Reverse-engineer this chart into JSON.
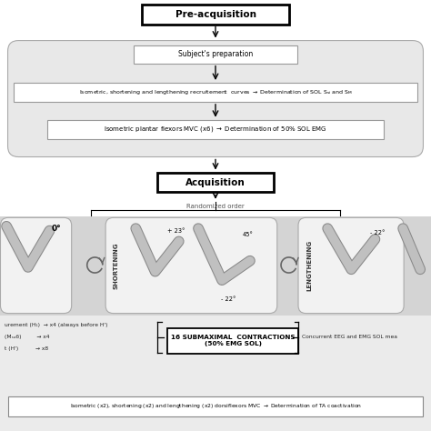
{
  "bg_color": "#ffffff",
  "gray_section": "#e8e8e8",
  "mid_strip": "#d8d8d8",
  "title1": "Pre-acquisition",
  "title2": "Acquisition",
  "box1": "Subject's preparation",
  "box2_text": "Isometric, shortening and lengthening recruitement  curves → Determination of SOL Sᴵᴵ and Sₘ",
  "box3_text": "Isometric plantar flexors MVC (x6) → Determination of 50% SOL EMG",
  "label_rand": "Randomized order",
  "angle0": "0°",
  "angle_plus23": "+ 23°",
  "angle_45": "45°",
  "angle_minus22a": "- 22°",
  "angle_minus22b": "- 22°",
  "shortening_label": "SHORTENING",
  "lengthening_label": "LENGTHENING",
  "left_text1": "urement (H₁)  → x4 (always before H')",
  "left_text2": "(Mₛᵤб)         → x4",
  "left_text3": "t (H')          → x8",
  "center_box": "16 SUBMAXIMAL  CONTRACTIONS\n(50% EMG SOL)",
  "right_text": "Concurrent EEG and EMG SOL mea",
  "bottom_box": "Isometric (x2), shortening (x2) and lengthening (x2) dorsiflexors MVC → Determination of TA coactivation"
}
